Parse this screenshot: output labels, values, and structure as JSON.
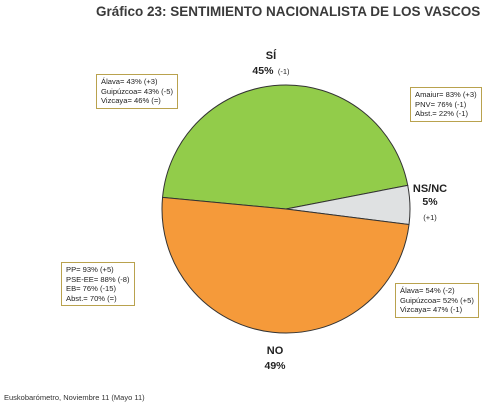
{
  "title": "Gráfico 23: SENTIMIENTO NACIONALISTA DE LOS VASCOS",
  "source": "Euskobarómetro, Noviembre 11 (Mayo 11)",
  "chart_data": {
    "type": "pie",
    "slices": [
      {
        "key": "si",
        "label": "SÍ",
        "value_text": "45%",
        "change": "(-1)",
        "value": 45,
        "color": "#92cc4a"
      },
      {
        "key": "nsnc",
        "label": "NS/NC",
        "value_text": "5%",
        "change": "(+1)",
        "value": 5,
        "color": "#dfe1e2"
      },
      {
        "key": "no",
        "label": "NO",
        "value_text": "49%",
        "change": "",
        "value": 49,
        "color": "#f59a3a"
      }
    ],
    "annotations": {
      "si_provinces": [
        "Álava= 43% (+3)",
        "Guipúzcoa= 43% (-5)",
        "Vizcaya= 46% (=)"
      ],
      "si_parties": [
        "Amaiur= 83% (+3)",
        "PNV= 76% (-1)",
        "Abst.= 22% (-1)"
      ],
      "no_parties": [
        "PP= 93% (+5)",
        "PSE-EE= 88% (-8)",
        "EB= 76% (-15)",
        "Abst.= 70% (=)"
      ],
      "no_provinces": [
        "Álava= 54% (-2)",
        "Guipúzcoa= 52% (+5)",
        "Vizcaya= 47% (-1)"
      ]
    }
  }
}
